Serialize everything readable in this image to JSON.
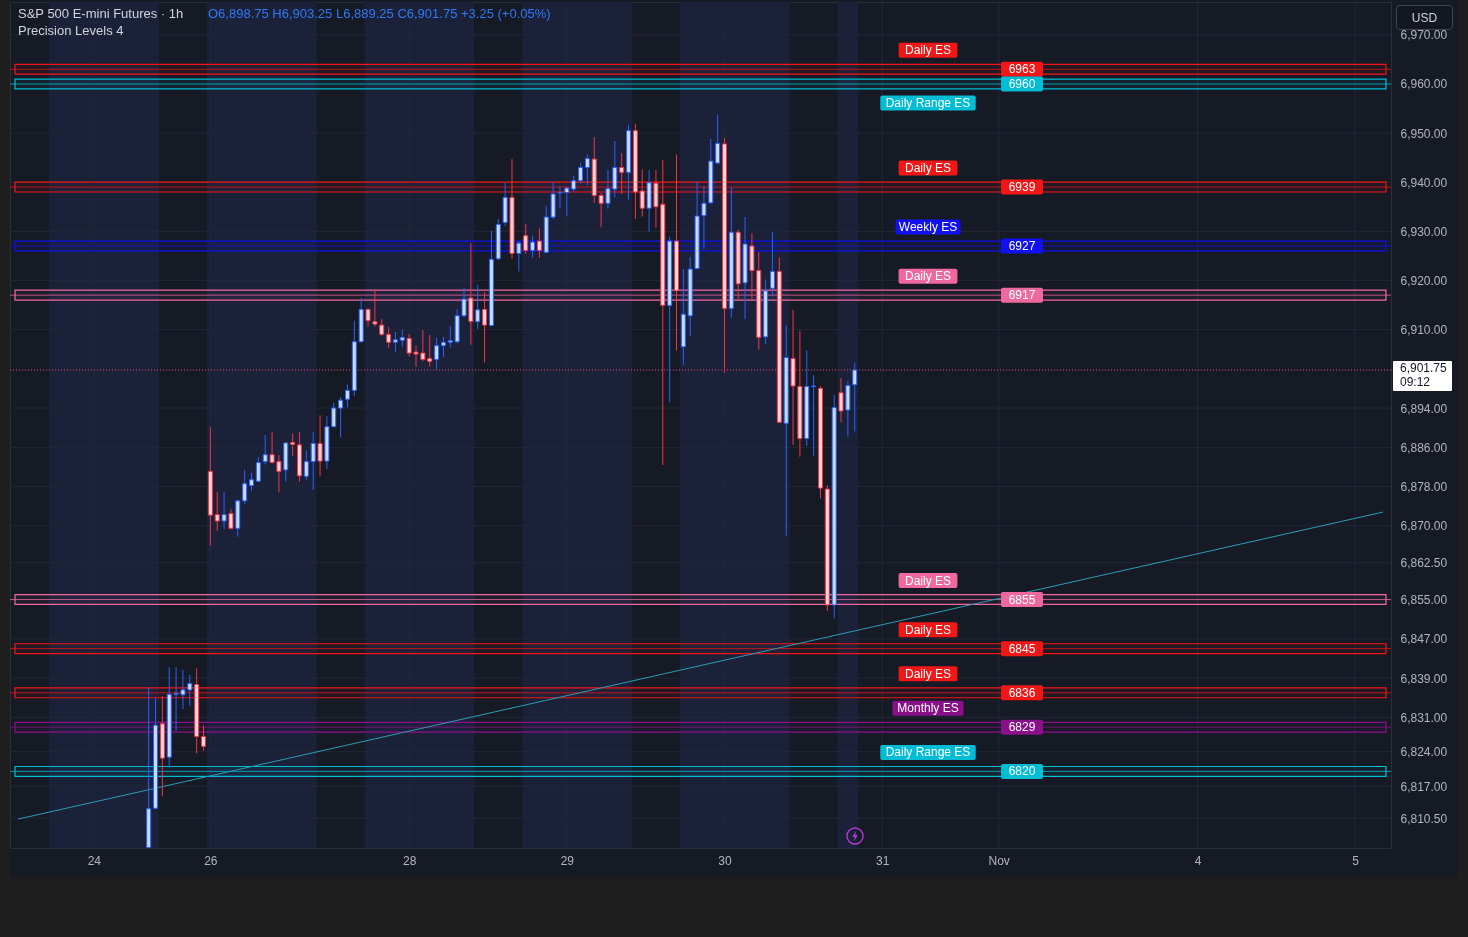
{
  "chart_data": {
    "type": "candlestick",
    "title": "S&P 500 E-mini Futures · 1h",
    "subtitle": "Precision Levels 4",
    "annotations": [
      "O6,898.75 H6,903.25 L6,889.25 C6,901.75 +3.25 (+0.05%)",
      "USD",
      "09:12",
      {
        "text": "6963",
        "y": 6963
      },
      {
        "text": "6960",
        "y": 6960
      },
      {
        "text": "6939",
        "y": 6939
      },
      {
        "text": "6927",
        "y": 6927
      },
      {
        "text": "6917",
        "y": 6917
      },
      {
        "text": "6855",
        "y": 6855
      },
      {
        "text": "6845",
        "y": 6845
      },
      {
        "text": "6836",
        "y": 6836
      },
      {
        "text": "6829",
        "y": 6829
      },
      {
        "text": "6820",
        "y": 6820
      }
    ],
    "categories": [
      null,
      null,
      null,
      null,
      null,
      null,
      null,
      null,
      null,
      null,
      null,
      "24",
      null,
      null,
      null,
      null,
      null,
      null,
      null,
      null,
      null,
      null,
      null,
      null,
      null,
      null,
      null,
      null,
      "26",
      null,
      null,
      null,
      null,
      null,
      null,
      null,
      null,
      null,
      null,
      null,
      null,
      null,
      null,
      null,
      null,
      null,
      null,
      null,
      null,
      null,
      null,
      null,
      null,
      null,
      null,
      null,
      null,
      "28",
      null,
      null,
      null,
      null,
      null,
      null,
      null,
      null,
      null,
      null,
      null,
      null,
      null,
      null,
      null,
      null,
      null,
      null,
      null,
      null,
      null,
      null,
      "29",
      null,
      null,
      null,
      null,
      null,
      null,
      null,
      null,
      null,
      null,
      null,
      null,
      null,
      null,
      null,
      null,
      null,
      null,
      null,
      null,
      null,
      null,
      "30",
      null,
      null,
      null,
      null,
      null,
      null,
      null,
      null,
      null,
      null,
      null,
      null,
      null,
      null,
      null,
      null,
      null,
      null,
      null,
      null,
      null,
      null,
      "31",
      null,
      null,
      null,
      null,
      null,
      null,
      null,
      null,
      null,
      null,
      null,
      null,
      null,
      null,
      null,
      null,
      "Nov",
      null,
      null,
      null,
      null,
      null,
      null,
      null,
      null,
      null,
      null,
      null,
      null,
      null,
      null,
      null,
      null,
      null,
      null,
      null,
      null,
      null,
      null,
      null,
      null,
      null,
      null,
      null,
      null,
      "4",
      null,
      null,
      null,
      null,
      null,
      null,
      null,
      null,
      null,
      null,
      null,
      null,
      null,
      null,
      null,
      null,
      null,
      null,
      null,
      null,
      null,
      null,
      "5",
      null,
      null,
      null,
      null
    ],
    "ohlc": [
      null,
      null,
      null,
      null,
      null,
      null,
      null,
      null,
      null,
      null,
      null,
      null,
      null,
      null,
      null,
      null,
      null,
      null,
      null,
      [
        6804.5,
        6837.1,
        6804.4,
        6812.4
      ],
      [
        6812.5,
        6834.9,
        6812.3,
        6829.4
      ],
      [
        6829.7,
        6835.3,
        6814.9,
        6822.7
      ],
      [
        6822.9,
        6841.2,
        6820.8,
        6835.7
      ],
      [
        6835.7,
        6841.2,
        6828.2,
        6835.9
      ],
      [
        6835.6,
        6840.7,
        6832.7,
        6836.6
      ],
      [
        6836.6,
        6839.7,
        6833.3,
        6837.9
      ],
      [
        6837.7,
        6841.0,
        6823.7,
        6827.1
      ],
      [
        6827.1,
        6829.4,
        6824.2,
        6825.1
      ],
      [
        6881.1,
        6890.1,
        6866.0,
        6872.2
      ],
      [
        6872.3,
        6876.9,
        6869.0,
        6871.0
      ],
      [
        6871.0,
        6876.9,
        6869.4,
        6872.3
      ],
      [
        6872.5,
        6873.4,
        6869.3,
        6869.5
      ],
      [
        6869.5,
        6875.3,
        6867.8,
        6875.1
      ],
      [
        6875.1,
        6881.4,
        6874.5,
        6878.6
      ],
      [
        6878.2,
        6880.8,
        6877.1,
        6879.4
      ],
      [
        6879.1,
        6884.0,
        6879.1,
        6882.9
      ],
      [
        6883.1,
        6888.5,
        6882.5,
        6884.5
      ],
      [
        6884.5,
        6889.1,
        6882.7,
        6882.9
      ],
      [
        6883.1,
        6884.4,
        6876.8,
        6881.1
      ],
      [
        6881.4,
        6886.9,
        6879.0,
        6886.9
      ],
      [
        6887.0,
        6888.8,
        6884.3,
        6886.6
      ],
      [
        6886.5,
        6889.1,
        6879.0,
        6880.2
      ],
      [
        6880.1,
        6885.4,
        6879.4,
        6883.1
      ],
      [
        6883.1,
        6889.1,
        6877.3,
        6886.8
      ],
      [
        6886.8,
        6892.5,
        6880.1,
        6883.2
      ],
      [
        6883.2,
        6892.3,
        6881.6,
        6890.2
      ],
      [
        6890.2,
        6895.1,
        6890.1,
        6894.0
      ],
      [
        6894.0,
        6896.2,
        6888.0,
        6895.6
      ],
      [
        6895.8,
        6898.8,
        6894.2,
        6897.6
      ],
      [
        6897.6,
        6911.8,
        6896.5,
        6907.5
      ],
      [
        6907.5,
        6916.4,
        6907.4,
        6914.1
      ],
      [
        6914.1,
        6914.3,
        6910.6,
        6911.8
      ],
      [
        6911.6,
        6917.9,
        6910.6,
        6911.1
      ],
      [
        6910.9,
        6912.1,
        6908.7,
        6909.0
      ],
      [
        6909.0,
        6910.5,
        6906.3,
        6907.4
      ],
      [
        6907.4,
        6909.5,
        6905.5,
        6907.9
      ],
      [
        6907.8,
        6910.0,
        6906.4,
        6908.4
      ],
      [
        6908.2,
        6909.1,
        6904.5,
        6905.2
      ],
      [
        6905.4,
        6906.7,
        6902.4,
        6905.0
      ],
      [
        6905.2,
        6909.9,
        6903.5,
        6903.9
      ],
      [
        6904.1,
        6908.9,
        6902.4,
        6903.5
      ],
      [
        6903.9,
        6908.3,
        6901.8,
        6906.7
      ],
      [
        6906.7,
        6908.5,
        6904.4,
        6907.4
      ],
      [
        6907.4,
        6910.7,
        6906.3,
        6907.7
      ],
      [
        6907.5,
        6914.2,
        6907.2,
        6912.8
      ],
      [
        6912.8,
        6918.4,
        6912.5,
        6916.2
      ],
      [
        6916.4,
        6927.6,
        6906.9,
        6911.6
      ],
      [
        6911.6,
        6919.1,
        6910.1,
        6914.0
      ],
      [
        6914.1,
        6917.6,
        6903.3,
        6910.9
      ],
      [
        6910.8,
        6930.1,
        6910.8,
        6924.3
      ],
      [
        6924.4,
        6932.5,
        6924.2,
        6931.4
      ],
      [
        6931.8,
        6939.9,
        6931.1,
        6936.9
      ],
      [
        6936.9,
        6944.7,
        6924.4,
        6925.5
      ],
      [
        6925.5,
        6928.0,
        6921.8,
        6927.6
      ],
      [
        6929.1,
        6931.5,
        6925.4,
        6926.1
      ],
      [
        6926.1,
        6929.1,
        6924.6,
        6927.8
      ],
      [
        6928.0,
        6930.6,
        6924.6,
        6926.1
      ],
      [
        6925.7,
        6935.2,
        6925.7,
        6932.9
      ],
      [
        6932.9,
        6940.0,
        6932.5,
        6937.6
      ],
      [
        6937.8,
        6939.2,
        6934.6,
        6937.9
      ],
      [
        6937.9,
        6939.1,
        6933.1,
        6938.8
      ],
      [
        6938.6,
        6941.3,
        6938.2,
        6940.3
      ],
      [
        6940.3,
        6943.9,
        6939.7,
        6943.0
      ],
      [
        6943.0,
        6945.6,
        6939.4,
        6944.8
      ],
      [
        6944.7,
        6949.2,
        6935.8,
        6937.3
      ],
      [
        6937.3,
        6937.8,
        6930.9,
        6935.7
      ],
      [
        6935.7,
        6942.5,
        6934.6,
        6938.7
      ],
      [
        6938.6,
        6948.4,
        6936.9,
        6943.0
      ],
      [
        6943.0,
        6945.9,
        6937.6,
        6942.0
      ],
      [
        6942.0,
        6951.7,
        6936.4,
        6950.5
      ],
      [
        6950.5,
        6951.9,
        6932.5,
        6938.0
      ],
      [
        6938.2,
        6942.6,
        6933.0,
        6934.7
      ],
      [
        6934.7,
        6942.5,
        6929.9,
        6939.9
      ],
      [
        6939.8,
        6942.5,
        6930.7,
        6935.0
      ],
      [
        6935.5,
        6944.5,
        6882.4,
        6914.9
      ],
      [
        6914.9,
        6928.9,
        6895.2,
        6928.0
      ],
      [
        6928.0,
        6945.6,
        6905.7,
        6917.9
      ],
      [
        6906.5,
        6922.3,
        6902.8,
        6913.1
      ],
      [
        6912.8,
        6924.8,
        6908.6,
        6922.3
      ],
      [
        6922.4,
        6940.1,
        6922.4,
        6933.1
      ],
      [
        6933.2,
        6939.2,
        6926.4,
        6935.7
      ],
      [
        6935.8,
        6948.8,
        6935.6,
        6944.3
      ],
      [
        6943.9,
        6953.7,
        6943.9,
        6947.9
      ],
      [
        6947.8,
        6949.0,
        6901.2,
        6914.3
      ],
      [
        6914.3,
        6939.0,
        6912.4,
        6929.8
      ],
      [
        6929.8,
        6930.3,
        6916.2,
        6919.3
      ],
      [
        6919.5,
        6932.9,
        6912.1,
        6927.4
      ],
      [
        6927.0,
        6929.6,
        6916.2,
        6922.0
      ],
      [
        6922.0,
        6925.8,
        6905.9,
        6908.4
      ],
      [
        6908.5,
        6920.2,
        6907.0,
        6917.9
      ],
      [
        6918.4,
        6929.8,
        6916.7,
        6921.8
      ],
      [
        6921.8,
        6924.7,
        6890.9,
        6891.1
      ],
      [
        6890.9,
        6910.9,
        6868.0,
        6904.3
      ],
      [
        6904.1,
        6914.0,
        6886.5,
        6898.5
      ],
      [
        6898.4,
        6909.7,
        6884.1,
        6887.8
      ],
      [
        6887.8,
        6905.8,
        6886.3,
        6898.4
      ],
      [
        6898.4,
        6900.7,
        6884.3,
        6898.5
      ],
      [
        6898.0,
        6898.5,
        6875.6,
        6877.7
      ],
      [
        6877.5,
        6878.3,
        6852.7,
        6853.9
      ],
      [
        6853.9,
        6896.7,
        6851.2,
        6894.1
      ],
      [
        6897.1,
        6900.1,
        6891.1,
        6893.4
      ],
      [
        6893.6,
        6899.5,
        6888.2,
        6898.6
      ],
      [
        6898.75,
        6903.25,
        6889.25,
        6901.75
      ],
      null,
      null,
      null,
      null,
      null,
      null,
      null,
      null,
      null,
      null,
      null,
      null,
      null,
      null,
      null,
      null,
      null,
      null,
      null,
      null,
      null,
      null,
      null,
      null,
      null,
      null,
      null,
      null,
      null,
      null,
      null,
      null,
      null,
      null,
      null,
      null,
      null,
      null,
      null,
      null,
      null,
      null,
      null,
      null,
      null,
      null,
      null,
      null,
      null,
      null,
      null,
      null,
      null,
      null,
      null,
      null,
      null,
      null,
      null,
      null,
      null,
      null,
      null,
      null,
      null,
      null,
      null,
      null,
      null,
      null,
      null,
      null,
      null,
      null,
      null,
      null,
      null
    ],
    "series": [
      {
        "type": "line",
        "color": "#2a9db5",
        "values": [
          6810.3,
          null,
          null,
          null,
          null,
          null,
          null,
          null,
          null,
          null,
          null,
          null,
          null,
          null,
          null,
          null,
          null,
          null,
          null,
          null,
          null,
          null,
          null,
          null,
          null,
          null,
          null,
          null,
          null,
          null,
          null,
          null,
          null,
          null,
          null,
          null,
          null,
          null,
          null,
          null,
          null,
          null,
          null,
          null,
          null,
          null,
          null,
          null,
          null,
          null,
          null,
          null,
          null,
          null,
          null,
          null,
          null,
          null,
          null,
          null,
          null,
          null,
          null,
          null,
          null,
          null,
          null,
          null,
          null,
          null,
          null,
          null,
          null,
          null,
          null,
          null,
          null,
          null,
          null,
          null,
          null,
          null,
          null,
          null,
          null,
          null,
          null,
          null,
          null,
          null,
          null,
          null,
          null,
          null,
          null,
          null,
          null,
          null,
          null,
          null,
          null,
          null,
          null,
          null,
          null,
          null,
          null,
          null,
          null,
          null,
          null,
          null,
          null,
          null,
          null,
          null,
          null,
          null,
          null,
          null,
          null,
          null,
          null,
          null,
          null,
          null,
          null,
          null,
          null,
          null,
          null,
          null,
          null,
          null,
          null,
          null,
          null,
          null,
          null,
          null,
          null,
          null,
          null,
          null,
          null,
          null,
          null,
          null,
          null,
          null,
          null,
          null,
          null,
          null,
          null,
          null,
          null,
          null,
          null,
          null,
          null,
          null,
          null,
          null,
          null,
          null,
          null,
          null,
          null,
          null,
          null,
          null,
          null,
          null,
          null,
          null,
          null,
          null,
          null,
          null,
          null,
          null,
          null,
          null,
          null,
          null,
          null,
          null,
          null,
          null,
          null,
          null,
          null,
          null,
          null,
          null,
          null,
          null,
          null,
          6872.8
        ]
      }
    ],
    "ylim": [
      6804.4,
      6976.7
    ],
    "yticks": [
      {
        "value": 6970,
        "label": "6,970.00"
      },
      {
        "value": 6960,
        "label": "6,960.00"
      },
      {
        "value": 6950,
        "label": "6,950.00"
      },
      {
        "value": 6940,
        "label": "6,940.00"
      },
      {
        "value": 6930,
        "label": "6,930.00"
      },
      {
        "value": 6920,
        "label": "6,920.00"
      },
      {
        "value": 6910,
        "label": "6,910.00"
      },
      {
        "value": 6894,
        "label": "6,894.00"
      },
      {
        "value": 6886,
        "label": "6,886.00"
      },
      {
        "value": 6878,
        "label": "6,878.00"
      },
      {
        "value": 6870,
        "label": "6,870.00"
      },
      {
        "value": 6862.5,
        "label": "6,862.50"
      },
      {
        "value": 6855,
        "label": "6,855.00"
      },
      {
        "value": 6847,
        "label": "6,847.00"
      },
      {
        "value": 6839,
        "label": "6,839.00"
      },
      {
        "value": 6831,
        "label": "6,831.00"
      },
      {
        "value": 6824,
        "label": "6,824.00"
      },
      {
        "value": 6817,
        "label": "6,817.00"
      },
      {
        "value": 6810.5,
        "label": "6,810.50"
      }
    ],
    "grid": true,
    "ref_lines": [
      {
        "axis": "y",
        "value": 6963,
        "label": "Daily ES",
        "color": "#f21616"
      },
      {
        "axis": "y",
        "value": 6960,
        "label": "Daily Range ES",
        "color": "#00bcd4"
      },
      {
        "axis": "y",
        "value": 6939,
        "label": "Daily ES",
        "color": "#f21616"
      },
      {
        "axis": "y",
        "value": 6927,
        "label": "Weekly ES",
        "color": "#1010f0"
      },
      {
        "axis": "y",
        "value": 6917,
        "label": "Daily ES",
        "color": "#f0699e"
      },
      {
        "axis": "y",
        "value": 6855,
        "label": "Daily ES",
        "color": "#f0699e"
      },
      {
        "axis": "y",
        "value": 6845,
        "label": "Daily ES",
        "color": "#f21616"
      },
      {
        "axis": "y",
        "value": 6836,
        "label": "Daily ES",
        "color": "#f21616"
      },
      {
        "axis": "y",
        "value": 6829,
        "label": "Monthly ES",
        "color": "#8a108a"
      },
      {
        "axis": "y",
        "value": 6820,
        "label": "Daily Range ES",
        "color": "#00bcd4"
      },
      {
        "axis": "y",
        "value": 6901.75,
        "label": "6,901.75",
        "color": "#f0506e",
        "line_style": "dotted"
      }
    ],
    "bands": [
      {
        "axis": "y",
        "from": 6962,
        "to": 6964,
        "color": "#f21616"
      },
      {
        "axis": "y",
        "from": 6959,
        "to": 6961,
        "color": "#00bcd4"
      },
      {
        "axis": "y",
        "from": 6938,
        "to": 6940,
        "color": "#f21616"
      },
      {
        "axis": "y",
        "from": 6926,
        "to": 6928,
        "color": "#1010f0"
      },
      {
        "axis": "y",
        "from": 6916,
        "to": 6918,
        "color": "#f0699e"
      },
      {
        "axis": "y",
        "from": 6854,
        "to": 6856,
        "color": "#f0699e"
      },
      {
        "axis": "y",
        "from": 6844,
        "to": 6846,
        "color": "#f21616"
      },
      {
        "axis": "y",
        "from": 6835,
        "to": 6837,
        "color": "#f21616"
      },
      {
        "axis": "y",
        "from": 6828,
        "to": 6830,
        "color": "#8a108a"
      },
      {
        "axis": "y",
        "from": 6819,
        "to": 6821,
        "color": "#00bcd4"
      }
    ]
  }
}
